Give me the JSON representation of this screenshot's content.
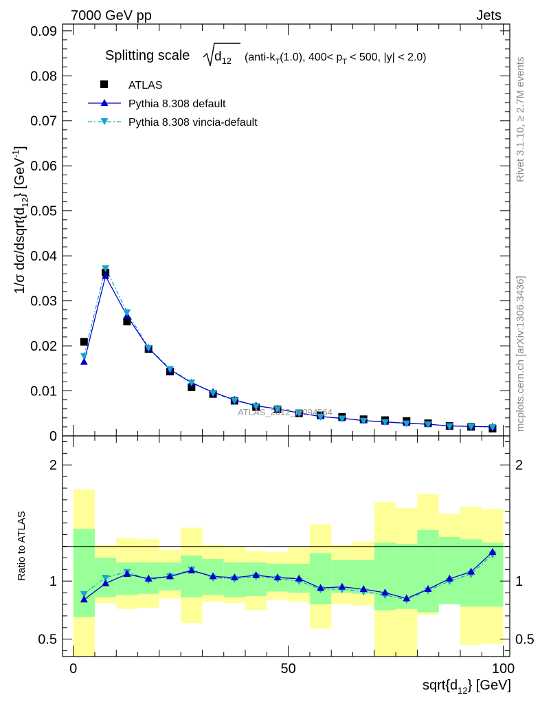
{
  "header": {
    "left": "7000 GeV pp",
    "right": "Jets"
  },
  "side": {
    "rivet": "Rivet 3.1.10, ≥ 2.7M events",
    "mcplots": "mcplots.cern.ch [arXiv:1306.3436]"
  },
  "title_main": "Splitting scale",
  "title_d": "d",
  "title_d_sub": "12",
  "title_rest_1": "(anti-k",
  "title_rest_1_sub": "T",
  "title_rest_2": "(1.0), 400< p",
  "title_rest_2_sub": "T",
  "title_rest_3": "< 500, |y| < 2.0)",
  "watermark": "ATLAS_2012_I1094564",
  "top_ylabel": "1/σ dσ/dsqrt{d",
  "top_ylabel_sub": "12",
  "top_ylabel_mid": "} [GeV",
  "top_ylabel_sup": "-1",
  "top_ylabel_end": "]",
  "ratio_ylabel": "Ratio to ATLAS",
  "xlabel": "sqrt{d",
  "xlabel_sub": "12",
  "xlabel_end": "} [GeV]",
  "legend": [
    {
      "name": "ATLAS",
      "color": "#000000",
      "marker": "square"
    },
    {
      "name": "Pythia 8.308 default",
      "color": "#0000cc",
      "marker": "triangle-up"
    },
    {
      "name": "Pythia 8.308 vincia-default",
      "color": "#1aa3cc",
      "marker": "triangle-down"
    }
  ],
  "colors": {
    "atlas": "#000000",
    "default": "#0000cc",
    "vincia": "#1aa3cc",
    "band_outer": "#ffff99",
    "band_inner": "#99ff99"
  },
  "chart_data": [
    {
      "type": "scatter",
      "panel": "main",
      "x_bin_edges": [
        0,
        5,
        10,
        15,
        20,
        25,
        30,
        35,
        40,
        45,
        50,
        55,
        60,
        65,
        70,
        75,
        80,
        85,
        90,
        95,
        100
      ],
      "x_tick_labels": [
        "0",
        "50",
        "100"
      ],
      "xlim": [
        -2.5,
        101.5
      ],
      "ylim": [
        0,
        0.0915
      ],
      "y_tick_labels": [
        "0",
        "0.01",
        "0.02",
        "0.03",
        "0.04",
        "0.05",
        "0.06",
        "0.07",
        "0.08",
        "0.09"
      ],
      "y_ticks": [
        0,
        0.01,
        0.02,
        0.03,
        0.04,
        0.05,
        0.06,
        0.07,
        0.08,
        0.09
      ],
      "series": [
        {
          "name": "ATLAS",
          "values": [
            0.0209,
            0.0363,
            0.0254,
            0.0193,
            0.0143,
            0.0108,
            0.0093,
            0.0078,
            0.0064,
            0.0059,
            0.005,
            0.0046,
            0.0042,
            0.0037,
            0.0035,
            0.0033,
            0.0028,
            0.0022,
            0.002,
            0.0016
          ]
        },
        {
          "name": "Pythia 8.308 default",
          "values": [
            0.0164,
            0.0355,
            0.0267,
            0.0195,
            0.0147,
            0.0118,
            0.0097,
            0.008,
            0.0067,
            0.006,
            0.0051,
            0.0043,
            0.0039,
            0.0034,
            0.0031,
            0.0028,
            0.0026,
            0.0022,
            0.0021,
            0.002
          ]
        },
        {
          "name": "Pythia 8.308 vincia-default",
          "values": [
            0.0178,
            0.0373,
            0.0275,
            0.0196,
            0.0149,
            0.0119,
            0.0096,
            0.0079,
            0.0066,
            0.006,
            0.0051,
            0.0043,
            0.0039,
            0.0034,
            0.0031,
            0.0028,
            0.0026,
            0.0022,
            0.0021,
            0.002
          ]
        }
      ]
    },
    {
      "type": "line",
      "panel": "ratio",
      "x_bin_edges": [
        0,
        5,
        10,
        15,
        20,
        25,
        30,
        35,
        40,
        45,
        50,
        55,
        60,
        65,
        70,
        75,
        80,
        85,
        90,
        95,
        100
      ],
      "x_tick_labels": [
        "0",
        "50",
        "100"
      ],
      "xlim": [
        -2.5,
        101.5
      ],
      "ylim": [
        0.35,
        2.25
      ],
      "y_tick_labels": [
        "0.5",
        "1",
        "2"
      ],
      "y_ticks": [
        0.5,
        1,
        2
      ],
      "reference_line": 1,
      "band_outer_low": [
        0.35,
        0.81,
        0.76,
        0.77,
        0.85,
        0.64,
        0.82,
        0.81,
        0.75,
        0.84,
        0.82,
        0.59,
        0.8,
        0.79,
        0.35,
        0.35,
        0.71,
        0.84,
        0.45,
        0.46
      ],
      "band_outer_high": [
        1.79,
        1.31,
        1.37,
        1.36,
        1.27,
        1.46,
        1.31,
        1.3,
        1.26,
        1.25,
        1.29,
        1.49,
        1.31,
        1.34,
        1.68,
        1.63,
        1.75,
        1.58,
        1.64,
        1.62
      ],
      "band_inner_low": [
        0.69,
        0.86,
        0.88,
        0.89,
        0.92,
        0.86,
        0.88,
        0.86,
        0.87,
        0.91,
        0.9,
        0.8,
        0.9,
        0.89,
        0.75,
        0.76,
        0.73,
        0.8,
        0.78,
        0.78
      ],
      "band_inner_high": [
        1.45,
        1.2,
        1.16,
        1.16,
        1.16,
        1.22,
        1.19,
        1.16,
        1.16,
        1.15,
        1.15,
        1.24,
        1.18,
        1.18,
        1.33,
        1.32,
        1.44,
        1.38,
        1.36,
        1.33
      ],
      "series": [
        {
          "name": "Pythia 8.308 default",
          "values": [
            0.84,
            0.98,
            1.06,
            1.02,
            1.04,
            1.09,
            1.04,
            1.03,
            1.05,
            1.03,
            1.02,
            0.94,
            0.95,
            0.93,
            0.9,
            0.85,
            0.93,
            1.02,
            1.08,
            1.25
          ]
        },
        {
          "name": "Pythia 8.308 vincia-default",
          "values": [
            0.89,
            1.03,
            1.08,
            1.01,
            1.04,
            1.1,
            1.03,
            1.02,
            1.04,
            1.02,
            1.0,
            0.93,
            0.93,
            0.91,
            0.88,
            0.84,
            0.92,
            1.0,
            1.06,
            1.23
          ]
        }
      ]
    }
  ]
}
